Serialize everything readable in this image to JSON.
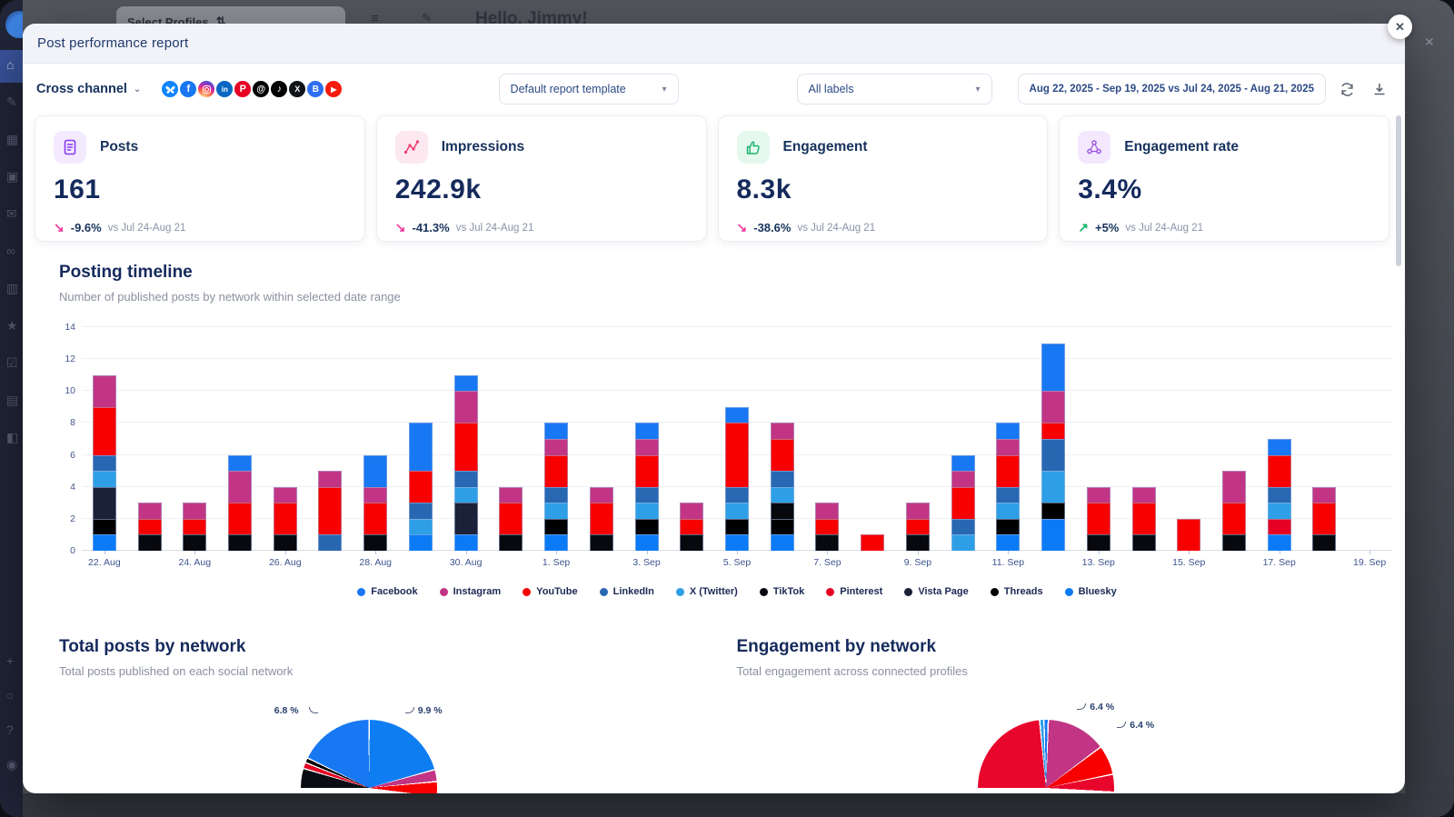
{
  "backdrop": {
    "topbar": {
      "select_profiles": "Select Profiles",
      "sort_glyph": "⇅",
      "burger_glyph": "≡",
      "pencil_glyph": "✎",
      "greeting": "Hello, Jimmy!"
    },
    "sidebar_icons": [
      {
        "name": "sidebar-home-icon",
        "glyph": "⌂"
      },
      {
        "name": "sidebar-compose-icon",
        "glyph": "✎"
      },
      {
        "name": "sidebar-calendar-icon",
        "glyph": "▦"
      },
      {
        "name": "sidebar-media-icon",
        "glyph": "▣"
      },
      {
        "name": "sidebar-messages-icon",
        "glyph": "✉"
      },
      {
        "name": "sidebar-connect-icon",
        "glyph": "∞"
      },
      {
        "name": "sidebar-analytics-icon",
        "glyph": "▥"
      },
      {
        "name": "sidebar-reviews-icon",
        "glyph": "★"
      },
      {
        "name": "sidebar-tasks-icon",
        "glyph": "☑"
      },
      {
        "name": "sidebar-listening-icon",
        "glyph": "▤"
      },
      {
        "name": "sidebar-company-icon",
        "glyph": "◧"
      }
    ],
    "sidebar_bottom_icons": [
      {
        "name": "sidebar-add-icon",
        "glyph": "+"
      },
      {
        "name": "sidebar-notifications-icon",
        "glyph": "○"
      },
      {
        "name": "sidebar-help-icon",
        "glyph": "?"
      },
      {
        "name": "sidebar-profile-icon",
        "glyph": "◉"
      }
    ],
    "close_x": "✕"
  },
  "modal": {
    "title": "Post performance report",
    "close_icon": "✕",
    "filters": {
      "channel_label": "Cross channel",
      "chevron": "⌄",
      "networks": [
        {
          "id": "bluesky",
          "label": "Bluesky",
          "color": "#1185FE",
          "glyph": ""
        },
        {
          "id": "facebook",
          "label": "Facebook",
          "color": "#1877F2",
          "glyph": "f"
        },
        {
          "id": "instagram",
          "label": "Instagram",
          "color": "#D62976",
          "glyph": ""
        },
        {
          "id": "linkedin",
          "label": "LinkedIn",
          "color": "#0A66C2",
          "glyph": "in",
          "fs": 8
        },
        {
          "id": "pinterest",
          "label": "Pinterest",
          "color": "#E60023",
          "glyph": "P",
          "fs": 11
        },
        {
          "id": "threads",
          "label": "Threads",
          "color": "#000000",
          "glyph": "@",
          "fs": 10
        },
        {
          "id": "tiktok",
          "label": "TikTok",
          "color": "#010101",
          "glyph": "♪",
          "fs": 11
        },
        {
          "id": "x-twitter",
          "label": "X (Twitter)",
          "color": "#0F1419",
          "glyph": "X",
          "fs": 9
        },
        {
          "id": "vista-page",
          "label": "Vista Page",
          "color": "#2E6FF2",
          "glyph": "B",
          "fs": 10
        },
        {
          "id": "youtube",
          "label": "YouTube",
          "color": "#F61C0D",
          "glyph": "▶",
          "fs": 8
        }
      ],
      "template_select": "Default report template",
      "labels_select": "All labels",
      "date_range": "Aug 22, 2025 - Sep 19, 2025 vs Jul 24, 2025 - Aug 21, 2025",
      "select_chevron": "▾"
    },
    "kpis": [
      {
        "label": "Posts",
        "value": "161",
        "arrow": "↘",
        "trend": "down",
        "delta": "-9.6%",
        "compare": "vs Jul 24-Aug 21"
      },
      {
        "label": "Impressions",
        "value": "242.9k",
        "arrow": "↘",
        "trend": "down",
        "delta": "-41.3%",
        "compare": "vs Jul 24-Aug 21"
      },
      {
        "label": "Engagement",
        "value": "8.3k",
        "arrow": "↘",
        "trend": "down",
        "delta": "-38.6%",
        "compare": "vs Jul 24-Aug 21"
      },
      {
        "label": "Engagement rate",
        "value": "3.4%",
        "arrow": "↗",
        "trend": "up",
        "delta": "+5%",
        "compare": "vs Jul 24-Aug 21"
      }
    ],
    "timeline": {
      "title": "Posting timeline",
      "subtitle": "Number of published posts by network within selected date range"
    },
    "bottom_sections": [
      {
        "title": "Total posts by network",
        "subtitle": "Total posts published on each social network"
      },
      {
        "title": "Engagement by network",
        "subtitle": "Total engagement across connected profiles"
      }
    ]
  },
  "chart_data": [
    {
      "type": "bar",
      "stacked": true,
      "title": "Posting timeline",
      "xlabel": "",
      "ylabel": "",
      "ylim": [
        0,
        14
      ],
      "yticks": [
        0,
        2,
        4,
        6,
        8,
        10,
        12,
        14
      ],
      "tick_every": 2,
      "grid": true,
      "legend_position": "bottom",
      "categories": [
        "22. Aug",
        "23. Aug",
        "24. Aug",
        "25. Aug",
        "26. Aug",
        "27. Aug",
        "28. Aug",
        "29. Aug",
        "30. Aug",
        "31. Aug",
        "1. Sep",
        "2. Sep",
        "3. Sep",
        "4. Sep",
        "5. Sep",
        "6. Sep",
        "7. Sep",
        "8. Sep",
        "9. Sep",
        "10. Sep",
        "11. Sep",
        "12. Sep",
        "13. Sep",
        "14. Sep",
        "15. Sep",
        "16. Sep",
        "17. Sep",
        "18. Sep",
        "19. Sep"
      ],
      "stack_order_bottom_to_top": [
        "Bluesky",
        "Threads",
        "Vista Page",
        "Pinterest",
        "TikTok",
        "X (Twitter)",
        "LinkedIn",
        "YouTube",
        "Instagram",
        "Facebook"
      ],
      "series": [
        {
          "name": "Facebook",
          "color": "#1877F2",
          "values": [
            0,
            0,
            0,
            1,
            0,
            0,
            2,
            3,
            1,
            0,
            1,
            0,
            1,
            0,
            1,
            0,
            0,
            0,
            0,
            1,
            1,
            3,
            0,
            0,
            0,
            0,
            1,
            0,
            0
          ]
        },
        {
          "name": "Instagram",
          "color": "#C13584",
          "values": [
            2,
            1,
            1,
            2,
            1,
            1,
            1,
            0,
            2,
            1,
            1,
            1,
            1,
            1,
            0,
            1,
            1,
            0,
            1,
            1,
            1,
            2,
            1,
            1,
            0,
            2,
            0,
            1,
            0
          ]
        },
        {
          "name": "YouTube",
          "color": "#F80000",
          "values": [
            3,
            1,
            1,
            2,
            2,
            3,
            2,
            2,
            3,
            2,
            2,
            2,
            2,
            1,
            4,
            2,
            1,
            1,
            1,
            2,
            2,
            1,
            2,
            2,
            2,
            2,
            2,
            2,
            0
          ]
        },
        {
          "name": "LinkedIn",
          "color": "#2867B2",
          "values": [
            1,
            0,
            0,
            0,
            0,
            1,
            0,
            1,
            1,
            0,
            1,
            0,
            1,
            0,
            1,
            1,
            0,
            0,
            0,
            1,
            1,
            2,
            0,
            0,
            0,
            0,
            1,
            0,
            0
          ]
        },
        {
          "name": "X (Twitter)",
          "color": "#2E9FE6",
          "values": [
            1,
            0,
            0,
            0,
            0,
            0,
            0,
            1,
            1,
            0,
            1,
            0,
            1,
            0,
            1,
            1,
            0,
            0,
            0,
            1,
            1,
            2,
            0,
            0,
            0,
            0,
            1,
            0,
            0
          ]
        },
        {
          "name": "TikTok",
          "color": "#07090F",
          "values": [
            0,
            1,
            1,
            1,
            1,
            0,
            1,
            0,
            0,
            1,
            0,
            1,
            0,
            1,
            0,
            1,
            1,
            0,
            1,
            0,
            0,
            0,
            1,
            1,
            0,
            1,
            0,
            1,
            0
          ]
        },
        {
          "name": "Pinterest",
          "color": "#E60023",
          "values": [
            0,
            0,
            0,
            0,
            0,
            0,
            0,
            0,
            0,
            0,
            0,
            0,
            0,
            0,
            0,
            0,
            0,
            0,
            0,
            0,
            0,
            0,
            0,
            0,
            0,
            0,
            1,
            0,
            0
          ]
        },
        {
          "name": "Vista Page",
          "color": "#1B2136",
          "values": [
            2,
            0,
            0,
            0,
            0,
            0,
            0,
            0,
            2,
            0,
            0,
            0,
            0,
            0,
            0,
            0,
            0,
            0,
            0,
            0,
            0,
            0,
            0,
            0,
            0,
            0,
            0,
            0,
            0
          ]
        },
        {
          "name": "Threads",
          "color": "#000000",
          "values": [
            1,
            0,
            0,
            0,
            0,
            0,
            0,
            0,
            0,
            0,
            1,
            0,
            1,
            0,
            1,
            1,
            0,
            0,
            0,
            0,
            1,
            1,
            0,
            0,
            0,
            0,
            0,
            0,
            0
          ]
        },
        {
          "name": "Bluesky",
          "color": "#0B7BF5",
          "values": [
            1,
            0,
            0,
            0,
            0,
            0,
            0,
            1,
            1,
            0,
            1,
            0,
            1,
            0,
            1,
            1,
            0,
            0,
            0,
            0,
            1,
            2,
            0,
            0,
            0,
            0,
            1,
            0,
            0
          ]
        }
      ]
    },
    {
      "type": "pie",
      "title": "Total posts by network",
      "note": "only top half of pie visible below fold",
      "labels": [
        {
          "text": "6.8 %"
        },
        {
          "text": "9.9 %"
        }
      ],
      "segments_visible_deg": [
        {
          "name": "TikTok",
          "color": "#0A0D14",
          "deg": 16
        },
        {
          "name": "Pinterest",
          "color": "#E60023",
          "deg": 4
        },
        {
          "name": "Threads",
          "color": "#000000",
          "deg": 3
        },
        {
          "name": "Facebook",
          "color": "#1877F2",
          "deg": 63
        },
        {
          "name": "Bluesky",
          "color": "#0E7DF2",
          "deg": 73
        },
        {
          "name": "Instagram",
          "color": "#C13584",
          "deg": 9
        },
        {
          "name": "YouTube",
          "color": "#F80000",
          "deg": 12
        }
      ]
    },
    {
      "type": "pie",
      "title": "Engagement by network",
      "note": "only top half of pie visible below fold",
      "labels": [
        {
          "text": "6.4 %"
        },
        {
          "text": "6.4 %"
        }
      ],
      "segments_visible_deg": [
        {
          "name": "YouTube",
          "color": "#E8062C",
          "deg": 84
        },
        {
          "name": "X (Twitter)",
          "color": "#2E9FE6",
          "deg": 2.5
        },
        {
          "name": "Facebook",
          "color": "#1877F2",
          "deg": 2.5
        },
        {
          "name": "Instagram",
          "color": "#C13584",
          "deg": 50
        },
        {
          "name": "Pinterest",
          "color": "#F80000",
          "deg": 24
        },
        {
          "name": "YouTube",
          "color": "#E8062C",
          "deg": 14
        }
      ]
    }
  ]
}
